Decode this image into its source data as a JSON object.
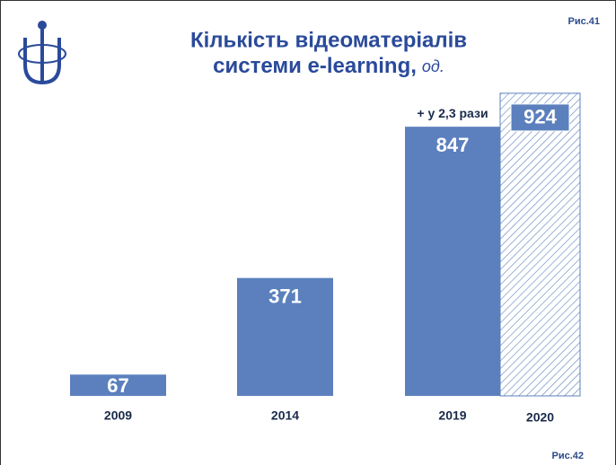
{
  "chart_data": {
    "type": "bar",
    "title": "Кількість відеоматеріалів",
    "title_line2": "системи e-learning,",
    "title_unit": "од.",
    "figure_label_top": "Рис.41",
    "figure_label_bottom": "Рис.42",
    "annotation": "+ у 2,3 рази",
    "categories": [
      "2009",
      "2014",
      "2019",
      "2020"
    ],
    "values": [
      67,
      371,
      847,
      924
    ],
    "color": "#5b80bd",
    "styles": [
      "solid",
      "solid",
      "solid",
      "hatched"
    ]
  }
}
